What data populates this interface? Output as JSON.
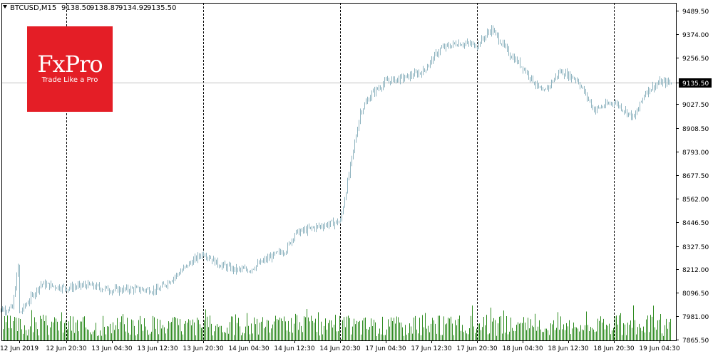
{
  "logo": {
    "name": "FxPro",
    "tagline": "Trade Like a Pro"
  },
  "header": {
    "symbol": "BTCUSD,M15",
    "open": "9138.50",
    "high": "9138.87",
    "low": "9134.92",
    "close": "9135.50"
  },
  "colors": {
    "bars": "#8fb4c0",
    "volume": "#2e8b20",
    "axis": "#000000",
    "grid": "#000000",
    "bid_line": "#c0c0c0"
  },
  "chart_data": {
    "type": "bar",
    "title": "BTCUSD,M15",
    "y_ticks": [
      9489.5,
      9374.0,
      9256.5,
      9135.5,
      9027.5,
      8908.5,
      8793.0,
      8677.5,
      8562.0,
      8446.5,
      8327.5,
      8212.0,
      8096.5,
      7981.0,
      7865.5
    ],
    "y_labels": [
      "9489.50",
      "9374.00",
      "9256.50",
      "9135.50",
      "9027.50",
      "8908.50",
      "8793.00",
      "8677.50",
      "8562.00",
      "8446.50",
      "8327.50",
      "8212.00",
      "8096.50",
      "7981.00",
      "7865.50"
    ],
    "ylim": [
      7865.5,
      9489.5
    ],
    "current_price": 9135.5,
    "current_price_label": "9135.50",
    "x_labels": [
      "12 Jun 2019",
      "12 Jun 20:30",
      "13 Jun 04:30",
      "13 Jun 12:30",
      "13 Jun 20:30",
      "14 Jun 04:30",
      "14 Jun 12:30",
      "14 Jun 20:30",
      "17 Jun 04:30",
      "17 Jun 12:30",
      "17 Jun 20:30",
      "18 Jun 04:30",
      "18 Jun 12:30",
      "18 Jun 20:30",
      "19 Jun 04:30"
    ],
    "separators": [
      "12 Jun 20:30",
      "13 Jun 20:30",
      "14 Jun 20:30",
      "17 Jun 20:30",
      "18 Jun 20:30"
    ],
    "series": [
      {
        "type": "price",
        "points": [
          [
            "12 Jun 2019",
            7995
          ],
          [
            "12 Jun 08:00",
            8010
          ],
          [
            "12 Jun 11:00",
            8020
          ],
          [
            "12 Jun 12:00",
            8230
          ],
          [
            "12 Jun 16:00",
            8140
          ],
          [
            "12 Jun 20:30",
            8120
          ],
          [
            "13 Jun 00:00",
            8135
          ],
          [
            "13 Jun 04:30",
            8110
          ],
          [
            "13 Jun 08:00",
            8115
          ],
          [
            "13 Jun 12:30",
            8110
          ],
          [
            "13 Jun 16:00",
            8190
          ],
          [
            "13 Jun 18:00",
            8240
          ],
          [
            "13 Jun 20:30",
            8295
          ],
          [
            "13 Jun 23:00",
            8240
          ],
          [
            "14 Jun 02:00",
            8210
          ],
          [
            "14 Jun 04:30",
            8210
          ],
          [
            "14 Jun 08:00",
            8270
          ],
          [
            "14 Jun 11:00",
            8310
          ],
          [
            "14 Jun 12:30",
            8390
          ],
          [
            "14 Jun 16:00",
            8420
          ],
          [
            "14 Jun 20:30",
            8450
          ],
          [
            "17 Jun 00:00",
            8990
          ],
          [
            "17 Jun 02:00",
            9080
          ],
          [
            "17 Jun 04:30",
            9140
          ],
          [
            "17 Jun 08:00",
            9160
          ],
          [
            "17 Jun 11:00",
            9190
          ],
          [
            "17 Jun 14:00",
            9300
          ],
          [
            "17 Jun 17:00",
            9330
          ],
          [
            "17 Jun 20:30",
            9320
          ],
          [
            "17 Jun 23:00",
            9400
          ],
          [
            "18 Jun 02:00",
            9280
          ],
          [
            "18 Jun 04:30",
            9210
          ],
          [
            "18 Jun 08:00",
            9080
          ],
          [
            "18 Jun 11:00",
            9190
          ],
          [
            "18 Jun 14:00",
            9150
          ],
          [
            "18 Jun 17:00",
            9000
          ],
          [
            "18 Jun 20:30",
            9040
          ],
          [
            "19 Jun 00:00",
            8960
          ],
          [
            "19 Jun 02:00",
            9090
          ],
          [
            "19 Jun 04:30",
            9135
          ],
          [
            "19 Jun 06:30",
            9135
          ]
        ]
      },
      {
        "type": "volume",
        "relative_level": 0.5
      }
    ]
  }
}
